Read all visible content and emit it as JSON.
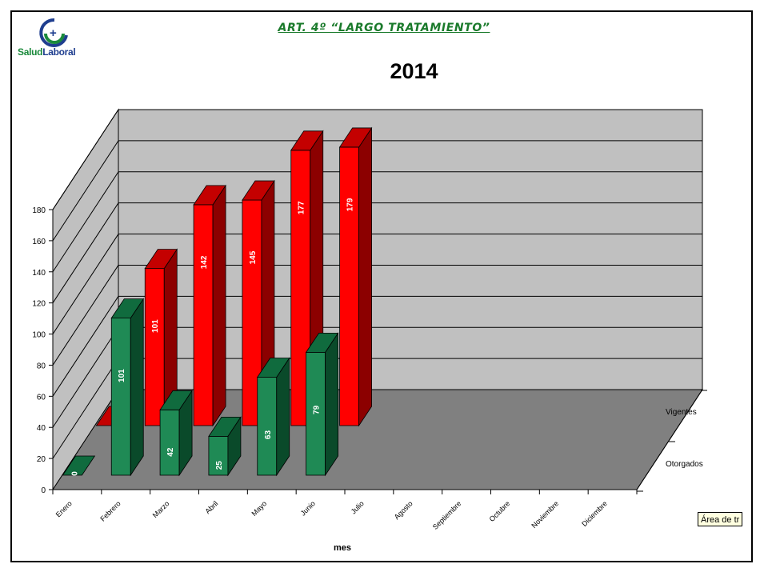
{
  "header": {
    "title": "ART. 4º “LARGO TRATAMIENTO”",
    "year": "2014"
  },
  "logo": {
    "text_a": "Salud",
    "text_b": "Laboral",
    "icon": "salud-laboral-logo"
  },
  "tooltip": "Área de tr",
  "colors": {
    "red_front": "#ff0000",
    "red_top": "#c40000",
    "red_side": "#8c0000",
    "green_front": "#1f8a55",
    "green_top": "#106b3e",
    "green_side": "#0a4a2a",
    "wall": "#c0c0c0",
    "floor": "#808080"
  },
  "chart_data": {
    "type": "bar",
    "xlabel": "mes",
    "ylabel": "",
    "ylim": [
      0,
      180
    ],
    "yticks": [
      0,
      20,
      40,
      60,
      80,
      100,
      120,
      140,
      160,
      180
    ],
    "categories": [
      "Enero",
      "Febrero",
      "Marzo",
      "Abril",
      "Mayo",
      "Junio",
      "Julio",
      "Agosto",
      "Septiembre",
      "Octubre",
      "Noviembre",
      "Diciembre"
    ],
    "series": [
      {
        "name": "Vigentes",
        "values": [
          0,
          101,
          142,
          145,
          177,
          179,
          null,
          null,
          null,
          null,
          null,
          null
        ],
        "data_labels": [
          "",
          "101",
          "142",
          "145",
          "177",
          "179",
          "",
          "",
          "",
          "",
          "",
          ""
        ]
      },
      {
        "name": "Otorgados",
        "values": [
          0,
          101,
          42,
          25,
          63,
          79,
          null,
          null,
          null,
          null,
          null,
          null
        ],
        "data_labels": [
          "0",
          "101",
          "42",
          "25",
          "63",
          "79",
          "",
          "",
          "",
          "",
          "",
          ""
        ]
      }
    ],
    "grid": true,
    "legend": "depth-axis labels (right)"
  }
}
